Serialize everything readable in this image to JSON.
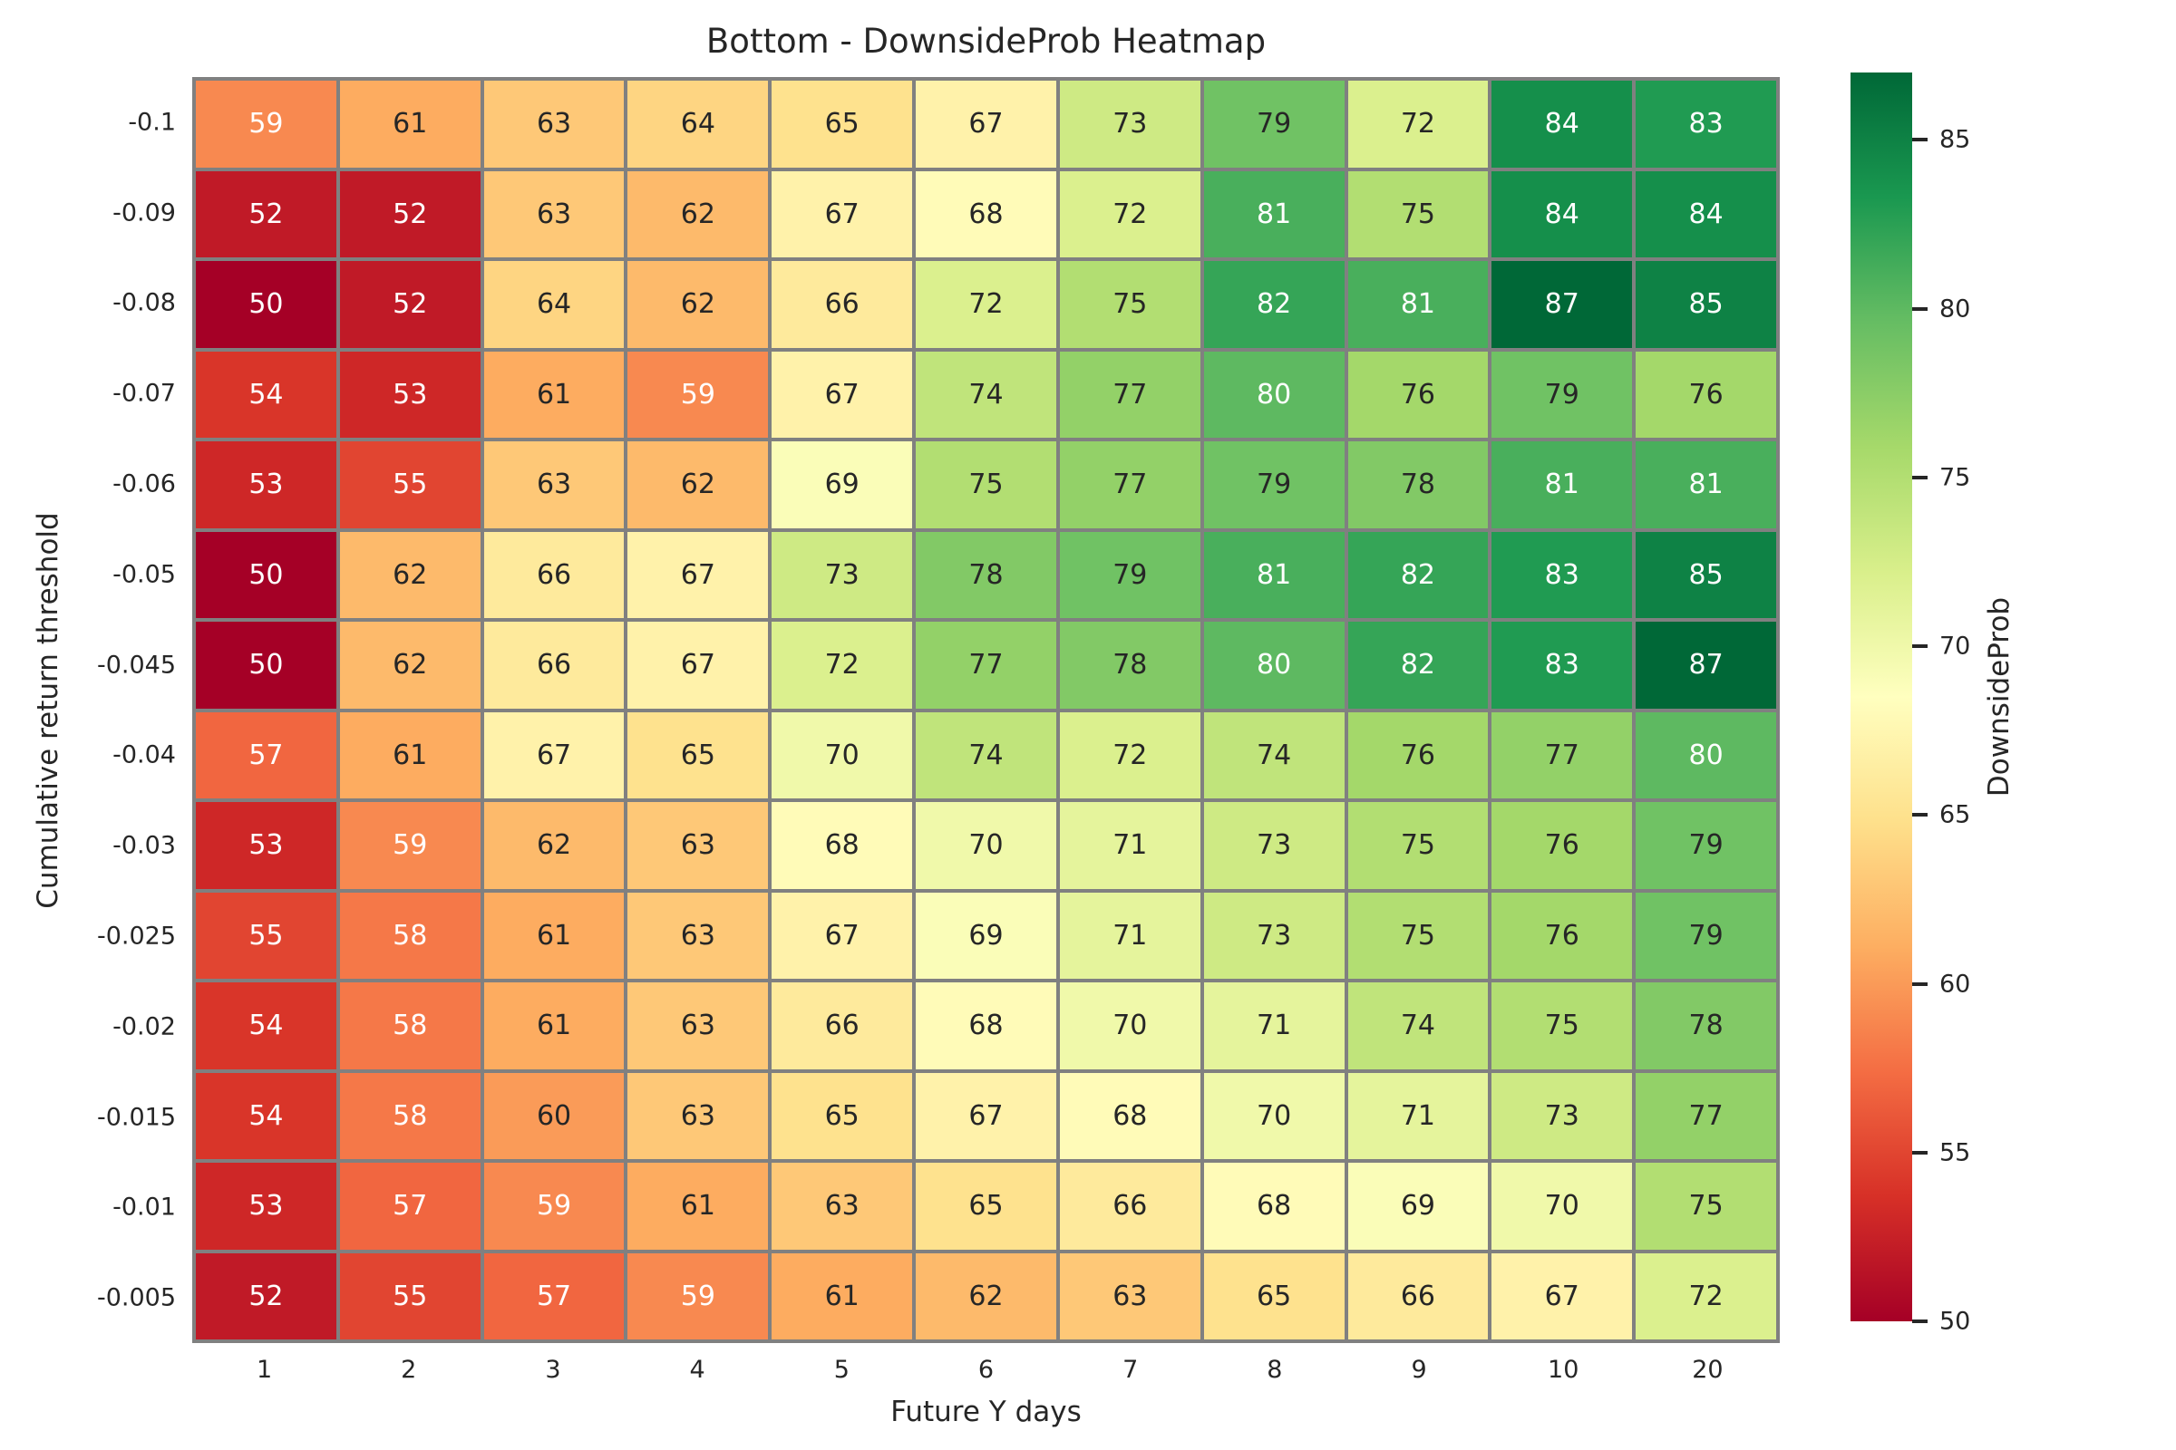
{
  "chart_data": {
    "type": "heatmap",
    "title": "Bottom - DownsideProb Heatmap",
    "xlabel": "Future Y days",
    "ylabel": "Cumulative return threshold",
    "x_categories": [
      "1",
      "2",
      "3",
      "4",
      "5",
      "6",
      "7",
      "8",
      "9",
      "10",
      "20"
    ],
    "y_categories": [
      "-0.1",
      "-0.09",
      "-0.08",
      "-0.07",
      "-0.06",
      "-0.05",
      "-0.045",
      "-0.04",
      "-0.03",
      "-0.025",
      "-0.02",
      "-0.015",
      "-0.01",
      "-0.005"
    ],
    "values": [
      [
        59,
        61,
        63,
        64,
        65,
        67,
        73,
        79,
        72,
        84,
        83
      ],
      [
        52,
        52,
        63,
        62,
        67,
        68,
        72,
        81,
        75,
        84,
        84
      ],
      [
        50,
        52,
        64,
        62,
        66,
        72,
        75,
        82,
        81,
        87,
        85
      ],
      [
        54,
        53,
        61,
        59,
        67,
        74,
        77,
        80,
        76,
        79,
        76
      ],
      [
        53,
        55,
        63,
        62,
        69,
        75,
        77,
        79,
        78,
        81,
        81
      ],
      [
        50,
        62,
        66,
        67,
        73,
        78,
        79,
        81,
        82,
        83,
        85
      ],
      [
        50,
        62,
        66,
        67,
        72,
        77,
        78,
        80,
        82,
        83,
        87
      ],
      [
        57,
        61,
        67,
        65,
        70,
        74,
        72,
        74,
        76,
        77,
        80
      ],
      [
        53,
        59,
        62,
        63,
        68,
        70,
        71,
        73,
        75,
        76,
        79
      ],
      [
        55,
        58,
        61,
        63,
        67,
        69,
        71,
        73,
        75,
        76,
        79
      ],
      [
        54,
        58,
        61,
        63,
        66,
        68,
        70,
        71,
        74,
        75,
        78
      ],
      [
        54,
        58,
        60,
        63,
        65,
        67,
        68,
        70,
        71,
        73,
        77
      ],
      [
        53,
        57,
        59,
        61,
        63,
        65,
        66,
        68,
        69,
        70,
        75
      ],
      [
        52,
        55,
        57,
        59,
        61,
        62,
        63,
        65,
        66,
        67,
        72
      ]
    ],
    "vmin": 50,
    "vmax": 87,
    "colormap": {
      "name": "RdYlGn",
      "anchors": [
        "#a50026",
        "#d73027",
        "#f46d43",
        "#fdae61",
        "#fee08b",
        "#ffffbf",
        "#d9ef8b",
        "#a6d96a",
        "#66bd63",
        "#1a9850",
        "#006837"
      ]
    },
    "colorbar": {
      "label": "DownsideProb",
      "ticks": [
        85,
        80,
        75,
        70,
        65,
        60,
        55,
        50
      ]
    },
    "style": {
      "grid_line_color": "#808080",
      "dark_text": "#262626",
      "light_text": "#ffffff",
      "luminance_threshold": 0.408,
      "background": "#ffffff"
    },
    "legend_position": "right",
    "grid": "cell-borders"
  }
}
